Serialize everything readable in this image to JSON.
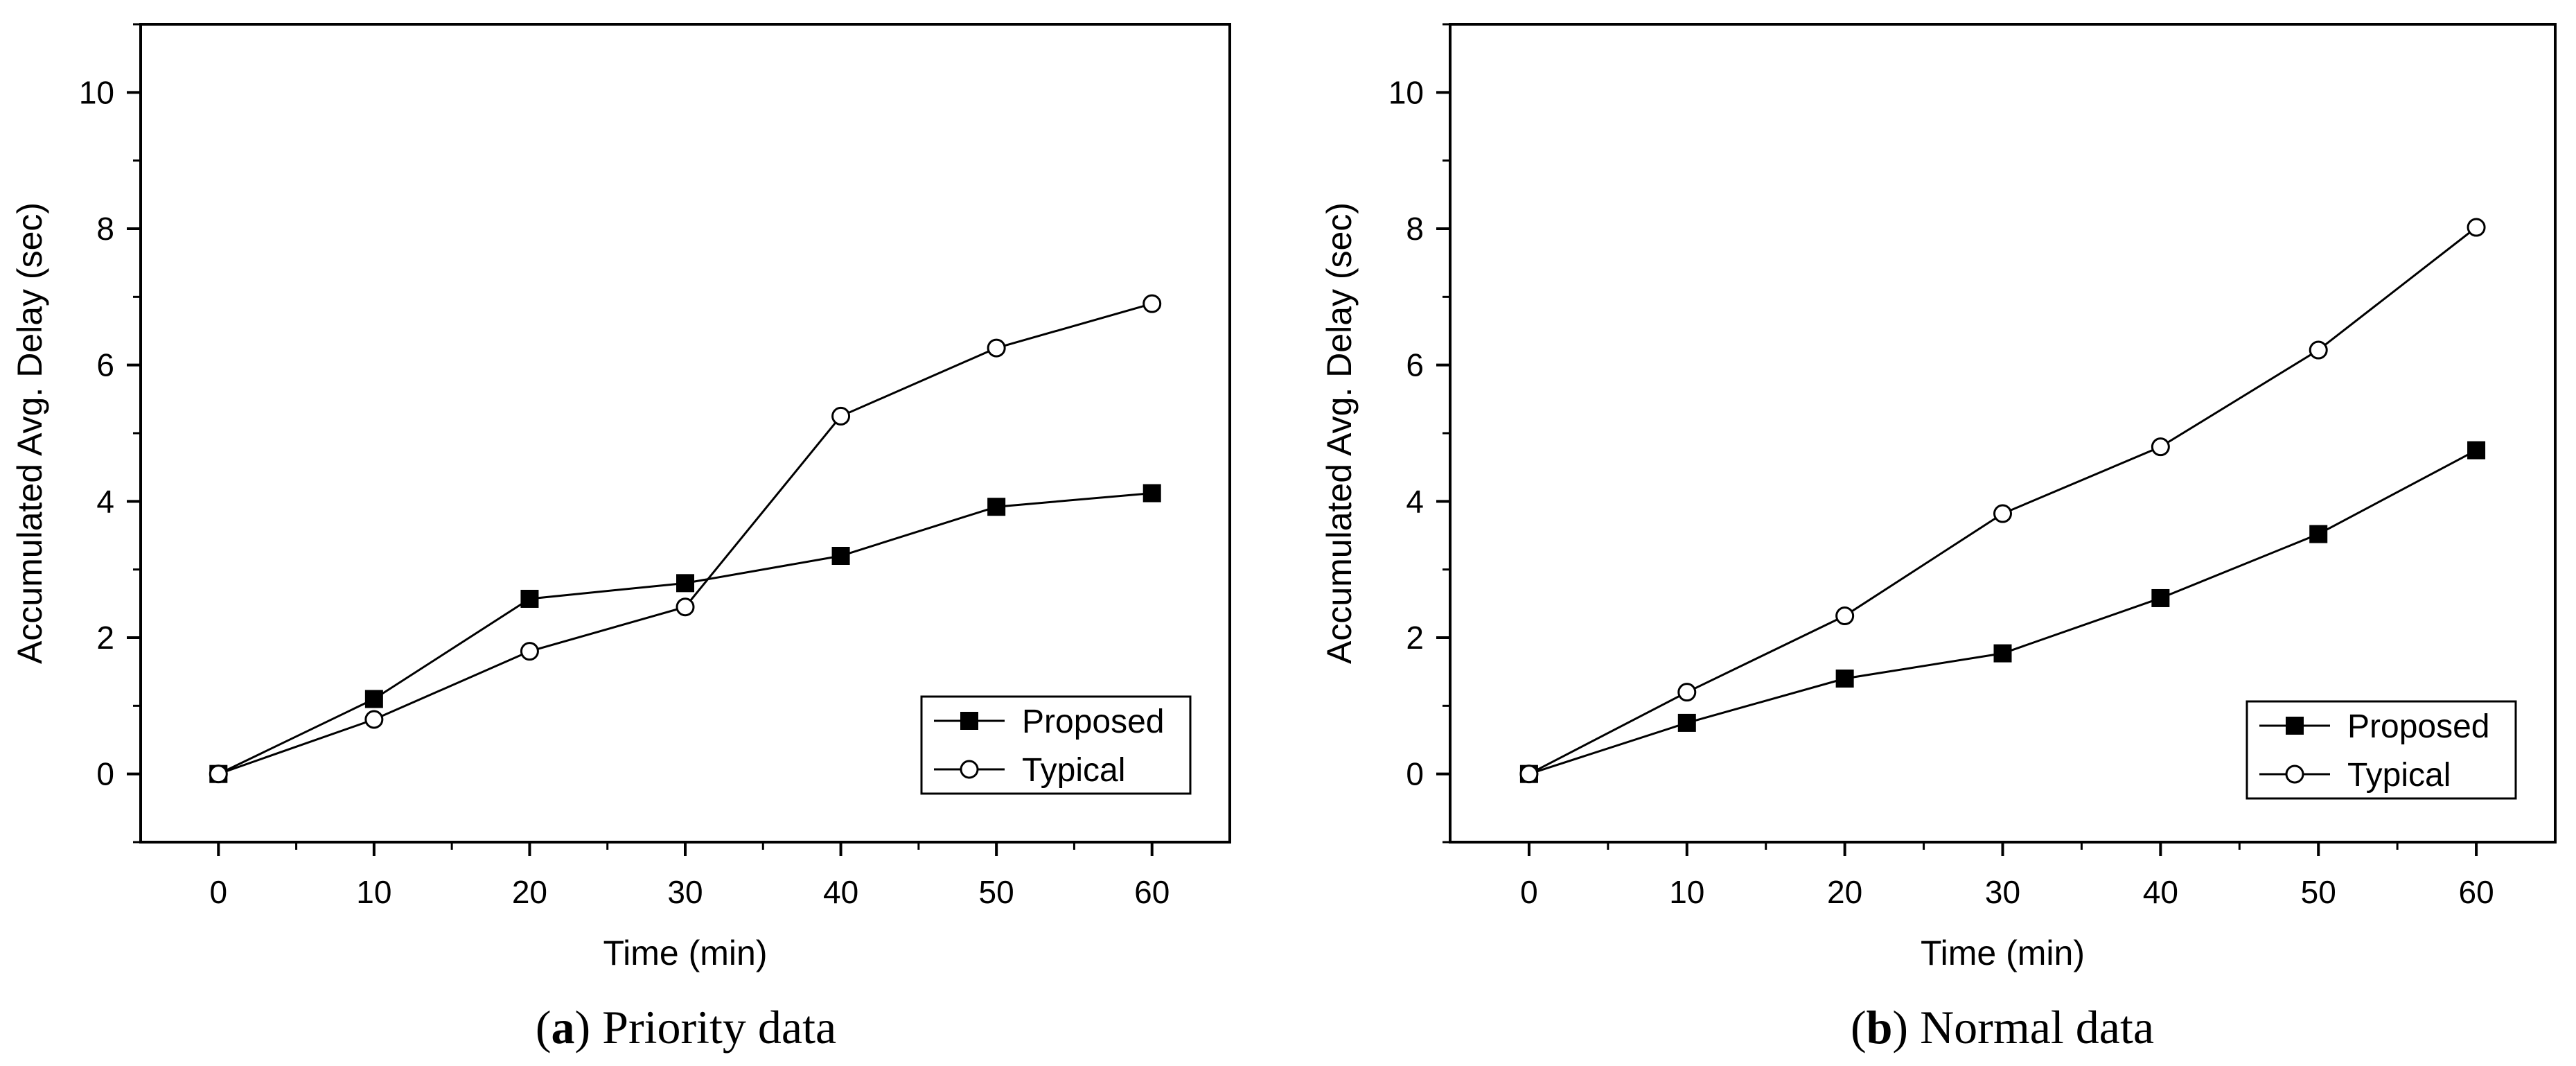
{
  "colors": {
    "proposed_marker": "#000000",
    "typical_marker": "#ffffff",
    "line": "#000000",
    "background": "#ffffff"
  },
  "chart_data": [
    {
      "type": "line",
      "caption_letter": "a",
      "caption_text": " Priority data",
      "xlabel": "Time (min)",
      "ylabel": "Accumulated Avg. Delay (sec)",
      "xlim": [
        -5,
        65
      ],
      "ylim": [
        -1,
        11
      ],
      "xticks": [
        0,
        10,
        20,
        30,
        40,
        50,
        60
      ],
      "yticks": [
        0,
        2,
        4,
        6,
        8,
        10
      ],
      "grid": false,
      "legend_position": "bottom-right",
      "series": [
        {
          "name": "Proposed",
          "marker": "filled-square",
          "x": [
            0,
            10,
            20,
            30,
            40,
            50,
            60
          ],
          "values": [
            0,
            1.1,
            2.57,
            2.8,
            3.2,
            3.92,
            4.12
          ]
        },
        {
          "name": "Typical",
          "marker": "open-circle",
          "x": [
            0,
            10,
            20,
            30,
            40,
            50,
            60
          ],
          "values": [
            0,
            0.8,
            1.8,
            2.45,
            5.25,
            6.25,
            6.9
          ]
        }
      ]
    },
    {
      "type": "line",
      "caption_letter": "b",
      "caption_text": " Normal data",
      "xlabel": "Time (min)",
      "ylabel": "Accumulated Avg. Delay (sec)",
      "xlim": [
        -5,
        65
      ],
      "ylim": [
        -1,
        11
      ],
      "xticks": [
        0,
        10,
        20,
        30,
        40,
        50,
        60
      ],
      "yticks": [
        0,
        2,
        4,
        6,
        8,
        10
      ],
      "grid": false,
      "legend_position": "bottom-right",
      "series": [
        {
          "name": "Proposed",
          "marker": "filled-square",
          "x": [
            0,
            10,
            20,
            30,
            40,
            50,
            60
          ],
          "values": [
            0,
            0.75,
            1.4,
            1.77,
            2.58,
            3.52,
            4.75
          ]
        },
        {
          "name": "Typical",
          "marker": "open-circle",
          "x": [
            0,
            10,
            20,
            30,
            40,
            50,
            60
          ],
          "values": [
            0,
            1.2,
            2.32,
            3.82,
            4.8,
            6.22,
            8.02
          ]
        }
      ]
    }
  ]
}
